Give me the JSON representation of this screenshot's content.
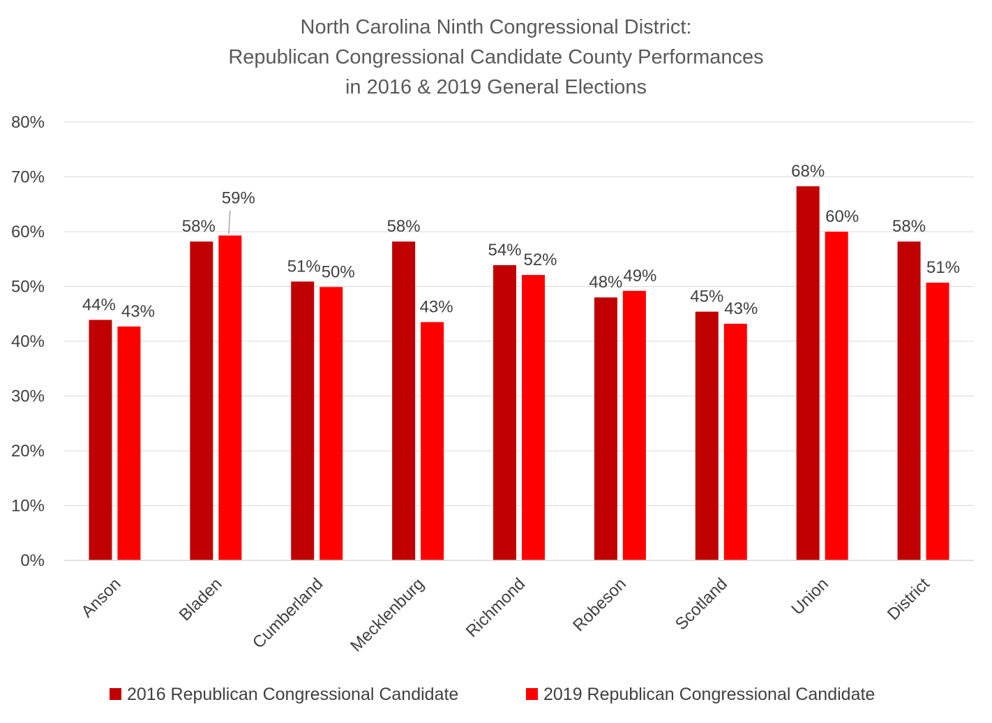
{
  "chart_data": {
    "type": "bar",
    "title": [
      "North Carolina Ninth Congressional District:",
      "Republican Congressional Candidate County Performances",
      "in 2016 & 2019 General Elections"
    ],
    "xlabel": "",
    "ylabel": "",
    "ylim": [
      0,
      80
    ],
    "yticks": [
      "0%",
      "10%",
      "20%",
      "30%",
      "40%",
      "50%",
      "60%",
      "70%",
      "80%"
    ],
    "grid": true,
    "legend_position": "bottom",
    "categories": [
      "Anson",
      "Bladen",
      "Cumberland",
      "Mecklenburg",
      "Richmond",
      "Robeson",
      "Scotland",
      "Union",
      "District"
    ],
    "series": [
      {
        "name": "2016 Republican Congressional Candidate",
        "color": "#c00000",
        "values": [
          43.9,
          58.2,
          50.9,
          58.2,
          53.9,
          48.0,
          45.4,
          68.3,
          58.2
        ],
        "labels": [
          "44%",
          "58%",
          "51%",
          "58%",
          "54%",
          "48%",
          "45%",
          "68%",
          "58%"
        ]
      },
      {
        "name": "2019 Republican Congressional Candidate",
        "color": "#ff0000",
        "values": [
          42.7,
          59.3,
          49.9,
          43.5,
          52.1,
          49.2,
          43.2,
          60.0,
          50.7
        ],
        "labels": [
          "43%",
          "59%",
          "50%",
          "43%",
          "52%",
          "49%",
          "43%",
          "60%",
          "51%"
        ]
      }
    ]
  }
}
